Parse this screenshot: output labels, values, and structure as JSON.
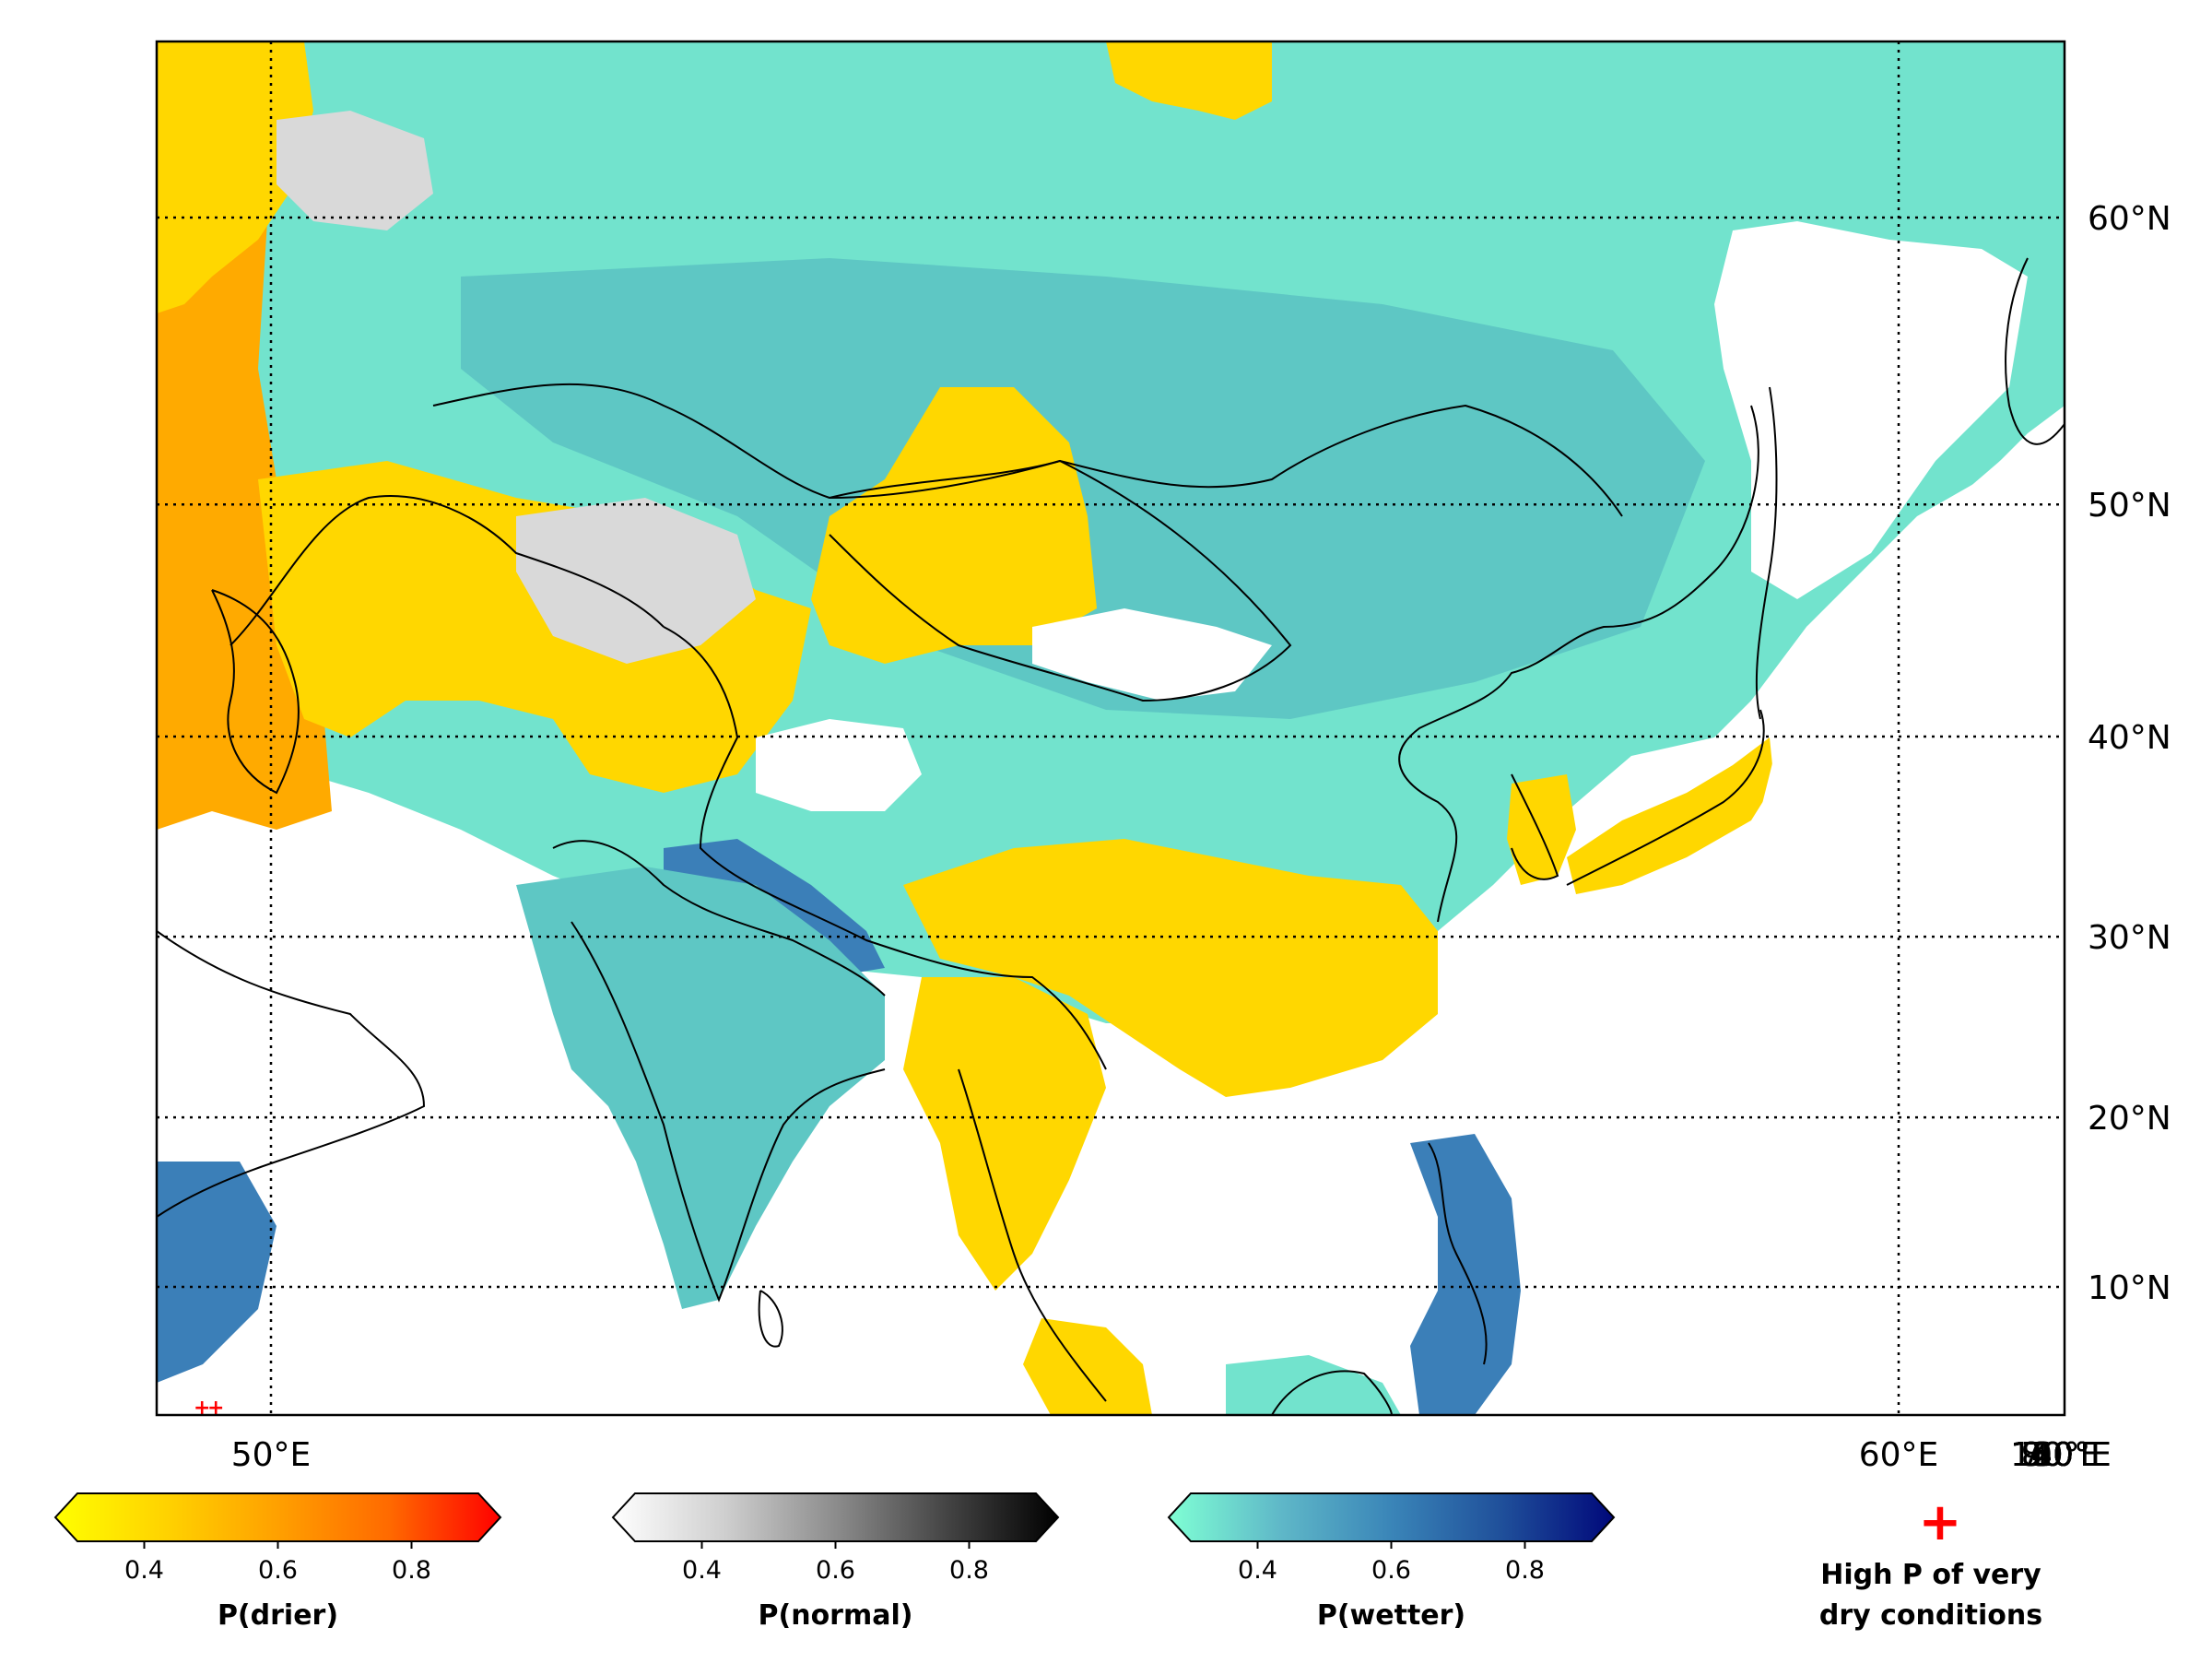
{
  "map": {
    "lon_ticks": [
      "50°E",
      "60°E",
      "70°E",
      "80°E",
      "90°E",
      "100°E",
      "110°E",
      "120°E",
      "130°E",
      "140°E",
      "150°E",
      "160°E"
    ],
    "lat_ticks": [
      "10°N",
      "20°N",
      "30°N",
      "40°N",
      "50°N",
      "60°N"
    ],
    "gridline_style": "dotted",
    "category_colors": {
      "drier": "#ffd700",
      "drier_strong": "#ffaa00",
      "normal": "#d9d9d9",
      "wetter": "#72e3cd",
      "wetter_mid": "#5ec7c4",
      "wetter_strong": "#3b7fb8",
      "no_data": "#ffffff"
    }
  },
  "colorbars": [
    {
      "label": "P(drier)",
      "ticks": [
        "0.4",
        "0.6",
        "0.8"
      ],
      "colors": [
        "#ffff00",
        "#ffd200",
        "#ffa000",
        "#ff6a00",
        "#ff0000"
      ]
    },
    {
      "label": "P(normal)",
      "ticks": [
        "0.4",
        "0.6",
        "0.8"
      ],
      "colors": [
        "#ffffff",
        "#cfcfcf",
        "#8c8c8c",
        "#444444",
        "#000000"
      ]
    },
    {
      "label": "P(wetter)",
      "ticks": [
        "0.4",
        "0.6",
        "0.8"
      ],
      "colors": [
        "#7fffd4",
        "#5fb8c8",
        "#3a85b8",
        "#1f4f9a",
        "#00087a"
      ]
    }
  ],
  "colorbar_range": [
    0.3,
    0.9
  ],
  "marker": {
    "symbol": "+",
    "color": "#ff0000",
    "label_line1": "High P of very",
    "label_line2": "dry conditions"
  }
}
